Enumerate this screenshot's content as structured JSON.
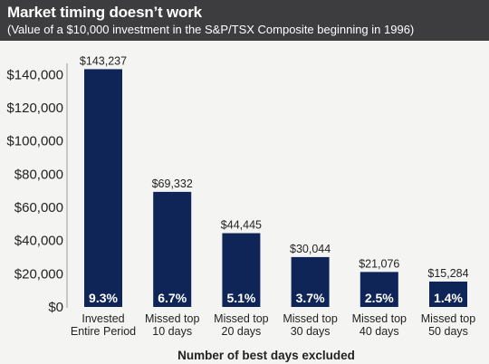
{
  "header": {
    "title": "Market timing doesn’t work",
    "subtitle": "(Value of a $10,000 investment in the S&P/TSX Composite beginning in 1996)"
  },
  "colors": {
    "header_bg": "#3d3d3f",
    "bar": "#0f2557",
    "background": "#f4f4f2",
    "axis": "#9a9a9a"
  },
  "chart_data": {
    "type": "bar",
    "title": "Market timing doesn’t work",
    "subtitle": "(Value of a $10,000 investment in the S&P/TSX Composite beginning in 1996)",
    "xlabel": "Number of best days excluded",
    "ylabel": "",
    "ylim": [
      0,
      150000
    ],
    "yticks": [
      0,
      20000,
      40000,
      60000,
      80000,
      100000,
      120000,
      140000
    ],
    "ytick_labels": [
      "$0",
      "$20,000",
      "$40,000",
      "$60,000",
      "$80,000",
      "$100,000",
      "$120,000",
      "$140,000"
    ],
    "categories": [
      [
        "Invested",
        "Entire Period"
      ],
      [
        "Missed top",
        "10 days"
      ],
      [
        "Missed top",
        "20 days"
      ],
      [
        "Missed top",
        "30 days"
      ],
      [
        "Missed top",
        "40 days"
      ],
      [
        "Missed top",
        "50 days"
      ]
    ],
    "values": [
      143237,
      69332,
      44445,
      30044,
      21076,
      15284
    ],
    "value_labels": [
      "$143,237",
      "$69,332",
      "$44,445",
      "$30,044",
      "$21,076",
      "$15,284"
    ],
    "bar_labels": [
      "9.3%",
      "6.7%",
      "5.1%",
      "3.7%",
      "2.5%",
      "1.4%"
    ],
    "grid": false,
    "legend": "none"
  }
}
